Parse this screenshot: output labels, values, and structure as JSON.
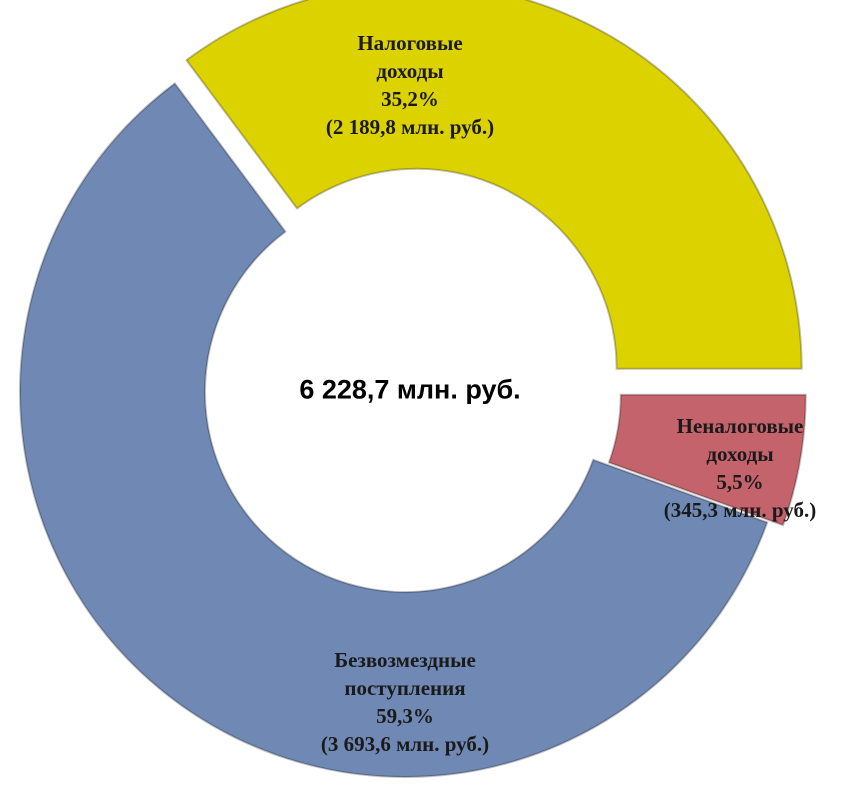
{
  "chart_data": {
    "type": "donut",
    "categories": [
      "Налоговые доходы",
      "Неналоговые доходы",
      "Безвозмездные поступления"
    ],
    "values": [
      35.2,
      5.5,
      59.3
    ],
    "value_labels": [
      "35,2%",
      "5,5%",
      "59,3%"
    ],
    "amount_labels": [
      "(2 189,8 млн. руб.)",
      "(345,3 млн. руб.)",
      "(3 693,6 млн. руб.)"
    ],
    "colors": [
      "#dcd200",
      "#c4636b",
      "#7089b4"
    ],
    "center_label": "6 228,7 млн. руб."
  }
}
